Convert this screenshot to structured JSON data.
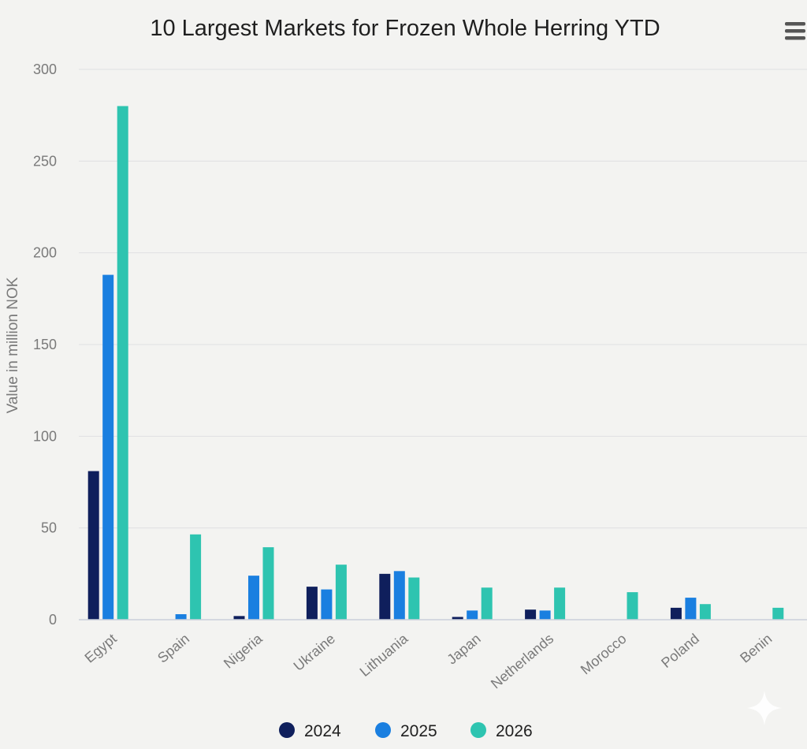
{
  "chart_data": {
    "type": "bar",
    "title": "10 Largest Markets for Frozen Whole Herring YTD",
    "xlabel": "",
    "ylabel": "Value in million NOK",
    "ylim": [
      0,
      300
    ],
    "yticks": [
      0,
      50,
      100,
      150,
      200,
      250,
      300
    ],
    "grid": true,
    "legend_position": "bottom-center",
    "categories": [
      "Egypt",
      "Spain",
      "Nigeria",
      "Ukraine",
      "Lithuania",
      "Japan",
      "Netherlands",
      "Morocco",
      "Poland",
      "Benin"
    ],
    "series": [
      {
        "name": "2024",
        "color": "#0f1f5c",
        "values": [
          81,
          0,
          2,
          18,
          25,
          1.5,
          5.5,
          0,
          6.5,
          0
        ]
      },
      {
        "name": "2025",
        "color": "#1a7fe0",
        "values": [
          188,
          3,
          24,
          16.5,
          26.5,
          5,
          5,
          0,
          12,
          0
        ]
      },
      {
        "name": "2026",
        "color": "#2ec4b0",
        "values": [
          280,
          46.5,
          39.5,
          30,
          23,
          17.5,
          17.5,
          15,
          8.5,
          6.5
        ]
      }
    ]
  },
  "menu_icon": "hamburger-menu-icon",
  "watermark_icon": "sparkle-icon"
}
